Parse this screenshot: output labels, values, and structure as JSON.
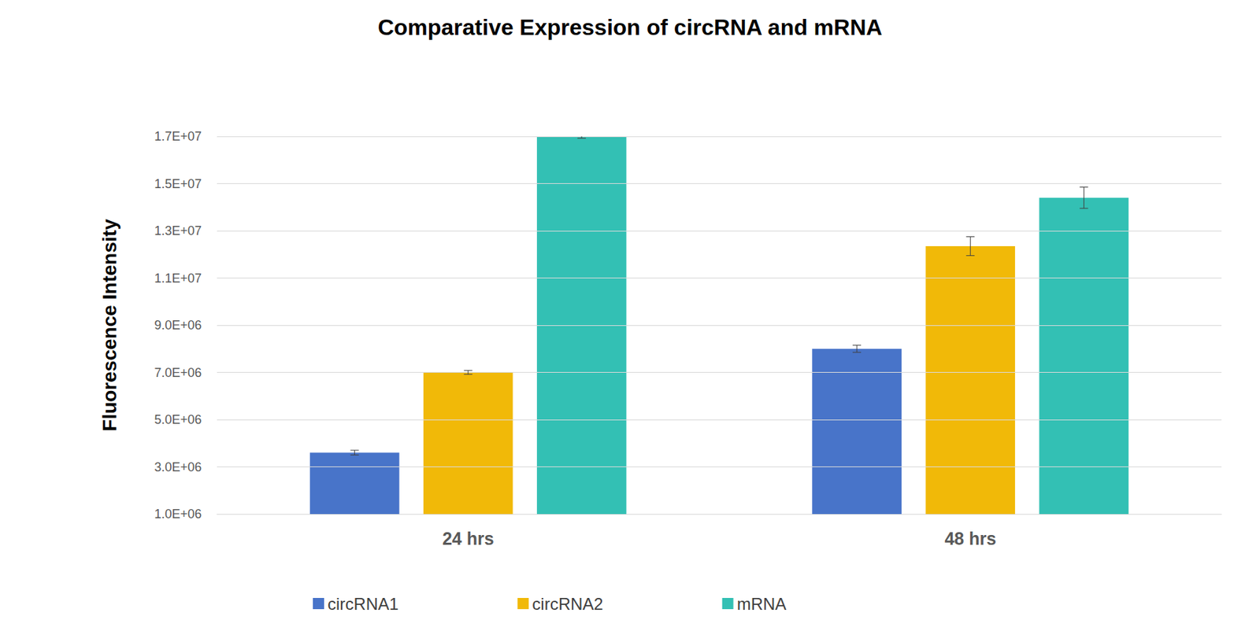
{
  "chart_data": {
    "type": "bar",
    "title": "Comparative Expression of circRNA and mRNA",
    "y_label": "Fluorescence Intensity",
    "categories": [
      "24 hrs",
      "48 hrs"
    ],
    "series": [
      {
        "name": "circRNA1",
        "color": "#4874c9",
        "values": [
          3600000,
          8000000
        ],
        "errors": [
          100000,
          150000
        ]
      },
      {
        "name": "circRNA2",
        "color": "#f1b908",
        "values": [
          7000000,
          12350000
        ],
        "errors": [
          80000,
          400000
        ]
      },
      {
        "name": "mRNA",
        "color": "#33c0b4",
        "values": [
          17000000,
          14400000
        ],
        "errors": [
          80000,
          450000
        ]
      }
    ],
    "ylim": [
      1000000,
      17000000
    ],
    "yticks": [
      {
        "value": 1000000,
        "label": "1.0E+06"
      },
      {
        "value": 3000000,
        "label": "3.0E+06"
      },
      {
        "value": 5000000,
        "label": "5.0E+06"
      },
      {
        "value": 7000000,
        "label": "7.0E+06"
      },
      {
        "value": 9000000,
        "label": "9.0E+06"
      },
      {
        "value": 11000000,
        "label": "1.1E+07"
      },
      {
        "value": 13000000,
        "label": "1.3E+07"
      },
      {
        "value": 15000000,
        "label": "1.5E+07"
      },
      {
        "value": 17000000,
        "label": "1.7E+07"
      }
    ],
    "grid": true,
    "legend": "bottom"
  }
}
